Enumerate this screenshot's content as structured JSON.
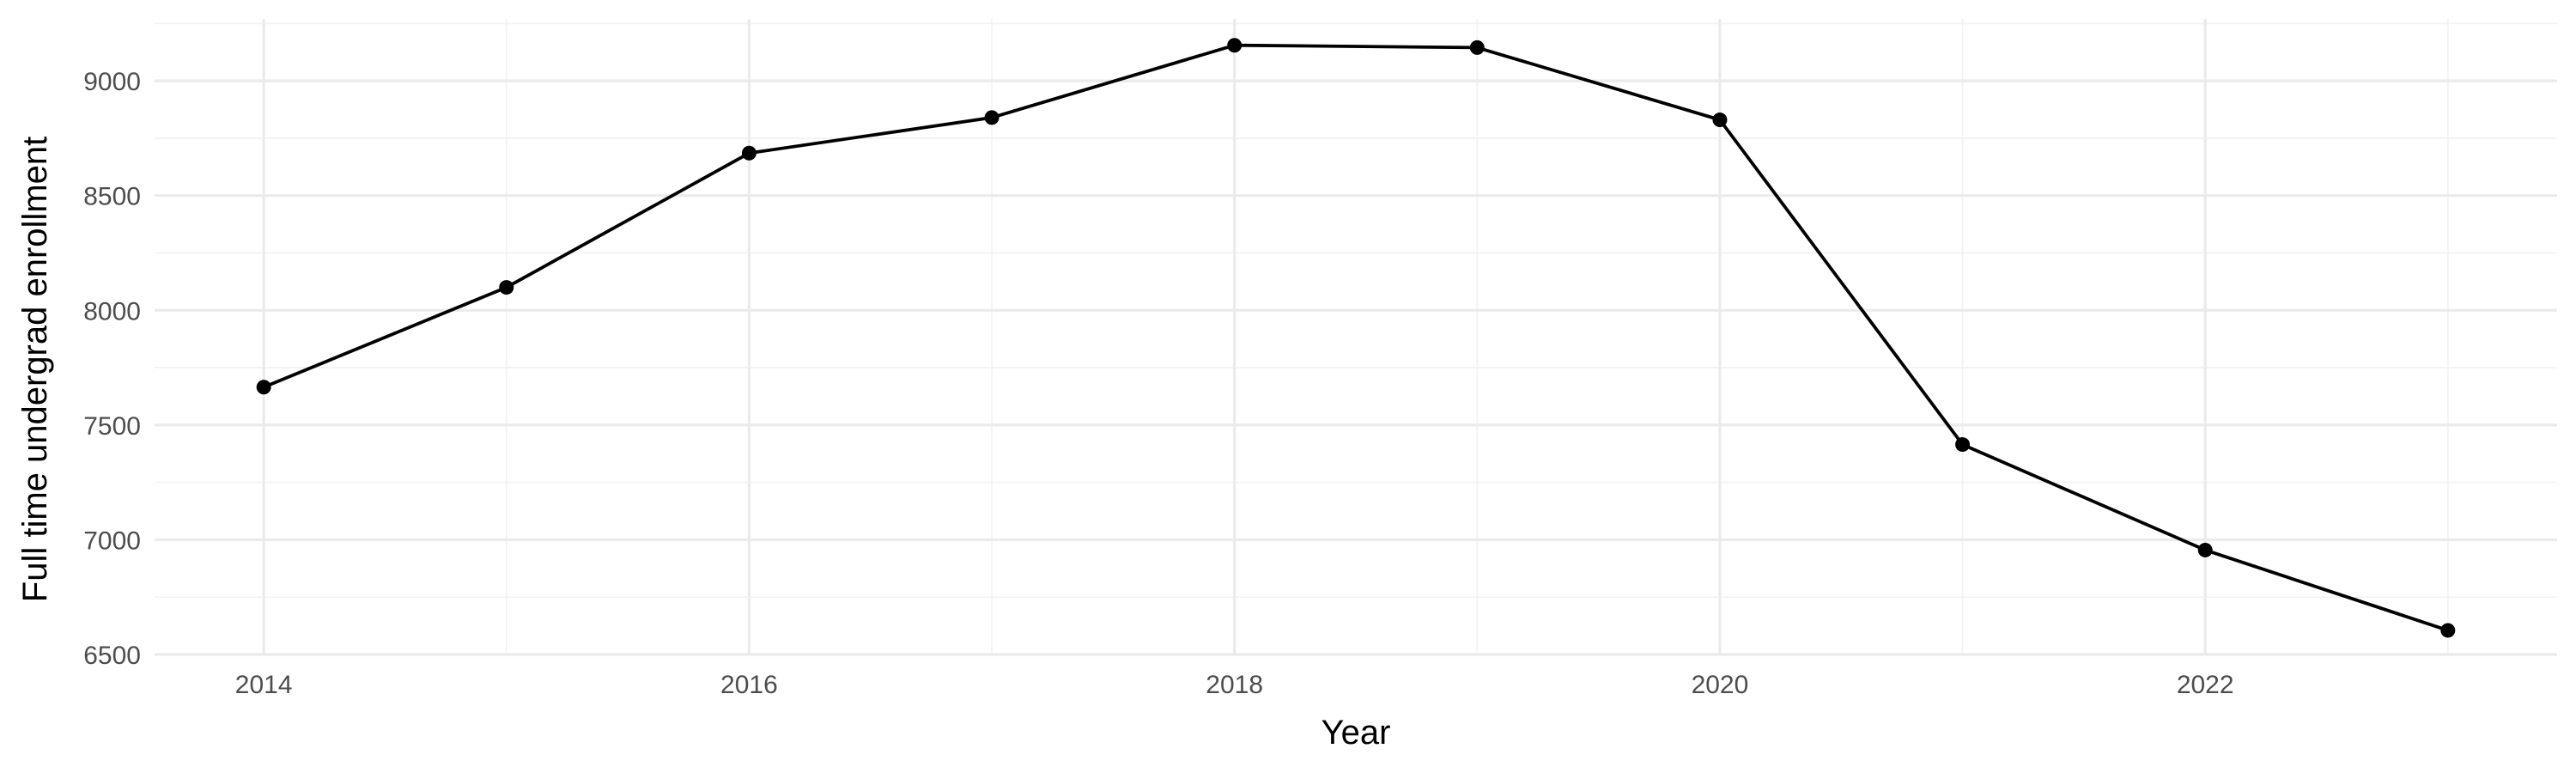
{
  "chart_data": {
    "type": "line",
    "xlabel": "Year",
    "ylabel": "Full time undergrad enrollment",
    "xlim": [
      2013.55,
      2023.45
    ],
    "ylim": [
      6500,
      9270
    ],
    "x_ticks": [
      2014,
      2016,
      2018,
      2020,
      2022
    ],
    "x_tick_labels": [
      "2014",
      "2016",
      "2018",
      "2020",
      "2022"
    ],
    "x_minor_ticks": [
      2015,
      2017,
      2019,
      2021,
      2023
    ],
    "y_ticks": [
      6500,
      7000,
      7500,
      8000,
      8500,
      9000
    ],
    "y_tick_labels": [
      "6500",
      "7000",
      "7500",
      "8000",
      "8500",
      "9000"
    ],
    "y_minor_ticks": [
      6750,
      7250,
      7750,
      8250,
      8750,
      9250
    ],
    "grid": true,
    "legend": "none",
    "x": [
      2014,
      2015,
      2016,
      2017,
      2018,
      2019,
      2020,
      2021,
      2022,
      2023
    ],
    "series": [
      {
        "values": [
          7665,
          8100,
          8685,
          8840,
          9155,
          9145,
          8830,
          7415,
          6955,
          6605
        ],
        "color": "#000000",
        "marker": "circle"
      }
    ]
  }
}
